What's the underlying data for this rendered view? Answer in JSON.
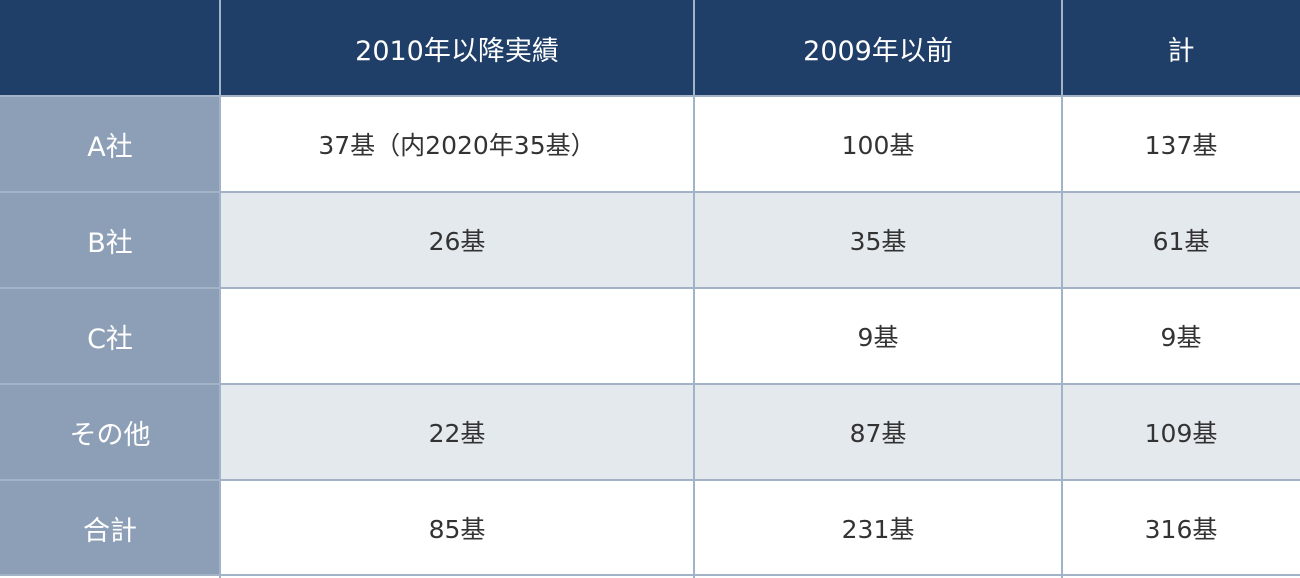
{
  "chart_data": {
    "type": "table",
    "columns": [
      "",
      "2010年以降実績",
      "2009年以前",
      "計"
    ],
    "rows": [
      {
        "label": "A社",
        "cells": [
          "37基（内2020年35基）",
          "100基",
          "137基"
        ]
      },
      {
        "label": "B社",
        "cells": [
          "26基",
          "35基",
          "61基"
        ]
      },
      {
        "label": "C社",
        "cells": [
          "",
          "9基",
          "9基"
        ]
      },
      {
        "label": "その他",
        "cells": [
          "22基",
          "87基",
          "109基"
        ]
      },
      {
        "label": "合計",
        "cells": [
          "85基",
          "231基",
          "316基"
        ]
      }
    ]
  },
  "colors": {
    "header_bg": "#1f3f69",
    "row_header_bg": "#8c9fb6",
    "row_shade": "#e4e9ee",
    "row_white": "#ffffff",
    "grid_line": "#a3b3c7",
    "body_text": "#333333"
  }
}
